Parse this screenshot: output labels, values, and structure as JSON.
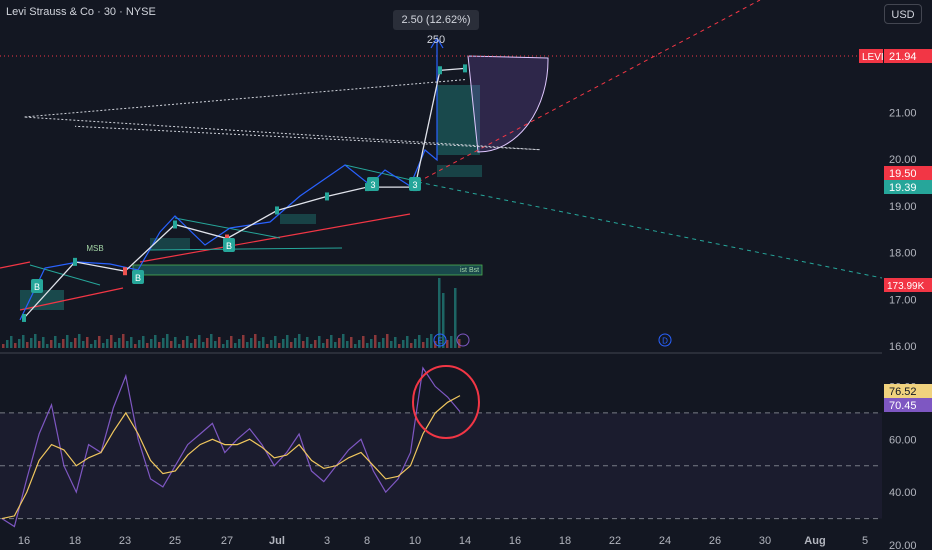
{
  "header": {
    "title": "Levi Strauss & Co · 30 · NYSE",
    "currency": "USD",
    "measure_tooltip": "2.50 (12.62%) 250"
  },
  "colors": {
    "background": "#131722",
    "up": "#26a69a",
    "down": "#ef5350",
    "rsi_line": "#7e57c2",
    "rsi_ma": "#f0c75e",
    "price_badge": "#f23645"
  },
  "chart_data": [
    {
      "type": "line",
      "name": "price",
      "ylim": [
        16.0,
        22.4
      ],
      "y_ticks": [
        "21.00",
        "20.00",
        "19.00",
        "18.00",
        "17.00",
        "16.00"
      ],
      "x_ticks": [
        "16",
        "18",
        "23",
        "25",
        "27",
        "Jul",
        "3",
        "8",
        "10",
        "14",
        "16",
        "18",
        "22",
        "24",
        "26",
        "30",
        "Aug",
        "5"
      ],
      "x": [
        "16",
        "18",
        "23",
        "25",
        "27",
        "Jul",
        "3",
        "8",
        "10",
        "11",
        "14"
      ],
      "values": [
        16.6,
        17.8,
        17.6,
        18.6,
        18.3,
        18.9,
        19.2,
        19.4,
        19.4,
        21.9,
        21.94
      ],
      "projection_x": [
        "14",
        "16",
        "17",
        "18"
      ],
      "projection_values": [
        21.7,
        20.9,
        20.2,
        20.7
      ],
      "price_labels": [
        {
          "text": "LEVI",
          "value": "21.94",
          "kind": "current"
        },
        {
          "text": "19.50",
          "value": "19.50",
          "kind": "red"
        },
        {
          "text": "19.39",
          "value": "19.39",
          "kind": "green"
        },
        {
          "text": "173.99K",
          "value": "173.99K",
          "kind": "red"
        }
      ],
      "annotations": [
        "MSB",
        "B",
        "B",
        "B",
        "3",
        "3",
        "E",
        "D"
      ],
      "zone_label": "ist Bst"
    },
    {
      "type": "line",
      "name": "RSI",
      "ylim": [
        20,
        90
      ],
      "y_ticks": [
        "80.00",
        "60.00",
        "40.00",
        "20.00"
      ],
      "levels": [
        70,
        50,
        30
      ],
      "labels": [
        {
          "text": "76.52",
          "kind": "ma"
        },
        {
          "text": "70.45",
          "kind": "rsi"
        }
      ],
      "rsi_values": [
        30,
        27,
        45,
        62,
        73,
        50,
        40,
        58,
        55,
        72,
        84,
        60,
        45,
        42,
        50,
        58,
        62,
        66,
        55,
        60,
        64,
        58,
        50,
        55,
        62,
        48,
        44,
        50,
        56,
        60,
        48,
        40,
        45,
        55,
        87,
        80,
        76,
        70.45
      ],
      "ma_values": [
        30,
        31,
        40,
        52,
        58,
        56,
        50,
        53,
        55,
        63,
        70,
        62,
        52,
        47,
        48,
        54,
        58,
        60,
        58,
        58,
        60,
        57,
        53,
        54,
        58,
        52,
        49,
        50,
        53,
        55,
        50,
        45,
        46,
        50,
        62,
        70,
        74,
        76.52
      ]
    }
  ]
}
